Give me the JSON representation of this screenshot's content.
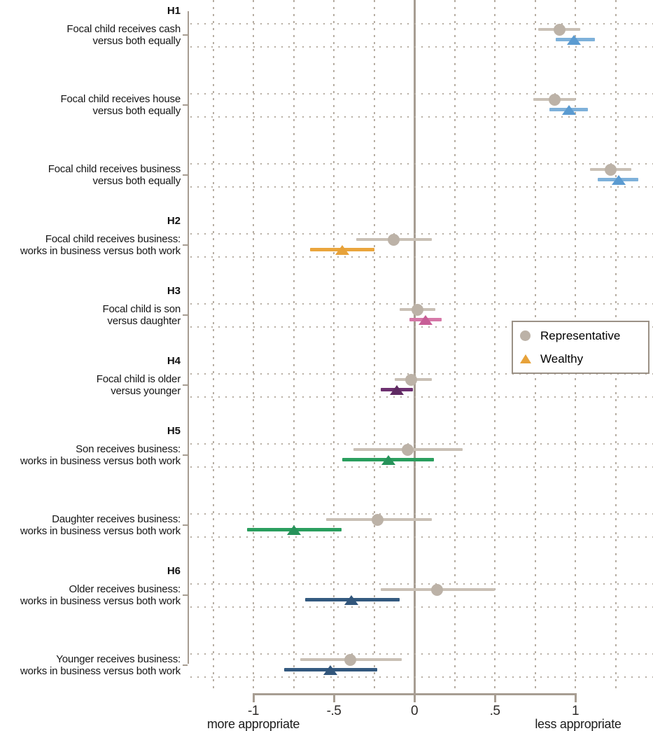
{
  "chart_data": {
    "type": "scatter",
    "variant": "coefficient-forest-plot",
    "title": "",
    "x_axis": {
      "ticks": [
        -1,
        -0.5,
        0,
        0.5,
        1
      ],
      "tick_labels": [
        "-1",
        "-.5",
        "0",
        ".5",
        "1"
      ],
      "label_left": "more appropriate",
      "label_right": "less appropriate",
      "gridline_step": 0.25,
      "gridline_range": [
        -1.25,
        1.25
      ],
      "zero_reference_line": true
    },
    "legend": {
      "items": [
        {
          "label": "Representative",
          "marker": "circle",
          "color": "#bcb2a7"
        },
        {
          "label": "Wealthy",
          "marker": "triangle",
          "color": "#e7a23a"
        }
      ]
    },
    "representative_color": "#bcb2a7",
    "representative_ci_color": "#c9c0b5",
    "groups": [
      {
        "header": "H1",
        "coefficients": [
          {
            "label_lines": [
              "Focal child receives cash",
              "versus both equally"
            ],
            "representative": {
              "est": 0.9,
              "ci": [
                0.77,
                1.03
              ]
            },
            "wealthy": {
              "est": 0.99,
              "ci": [
                0.88,
                1.12
              ],
              "color": "#5b9bd1",
              "ci_color": "#7eb1da"
            }
          },
          {
            "label_lines": [
              "Focal child receives house",
              "versus both equally"
            ],
            "representative": {
              "est": 0.87,
              "ci": [
                0.74,
                1.0
              ]
            },
            "wealthy": {
              "est": 0.96,
              "ci": [
                0.84,
                1.08
              ],
              "color": "#5b9bd1",
              "ci_color": "#7eb1da"
            }
          },
          {
            "label_lines": [
              "Focal child receives business",
              "versus both equally"
            ],
            "representative": {
              "est": 1.22,
              "ci": [
                1.09,
                1.35
              ]
            },
            "wealthy": {
              "est": 1.27,
              "ci": [
                1.14,
                1.39
              ],
              "color": "#5b9bd1",
              "ci_color": "#7eb1da"
            }
          }
        ]
      },
      {
        "header": "H2",
        "coefficients": [
          {
            "label_lines": [
              "Focal child receives business:",
              "works in business versus both work"
            ],
            "representative": {
              "est": -0.13,
              "ci": [
                -0.36,
                0.11
              ]
            },
            "wealthy": {
              "est": -0.45,
              "ci": [
                -0.65,
                -0.25
              ],
              "color": "#e7a23a",
              "ci_color": "#eaa53c"
            }
          }
        ]
      },
      {
        "header": "H3",
        "coefficients": [
          {
            "label_lines": [
              "Focal child is son",
              "versus daughter"
            ],
            "representative": {
              "est": 0.02,
              "ci": [
                -0.09,
                0.13
              ]
            },
            "wealthy": {
              "est": 0.07,
              "ci": [
                -0.03,
                0.17
              ],
              "color": "#c75e96",
              "ci_color": "#d678a8"
            }
          }
        ]
      },
      {
        "header": "H4",
        "coefficients": [
          {
            "label_lines": [
              "Focal child is older",
              "versus younger"
            ],
            "representative": {
              "est": -0.02,
              "ci": [
                -0.12,
                0.11
              ]
            },
            "wealthy": {
              "est": -0.11,
              "ci": [
                -0.21,
                -0.01
              ],
              "color": "#5f2a62",
              "ci_color": "#6d3170"
            }
          }
        ]
      },
      {
        "header": "H5",
        "coefficients": [
          {
            "label_lines": [
              "Son receives business:",
              "works in business versus both work"
            ],
            "representative": {
              "est": -0.04,
              "ci": [
                -0.38,
                0.3
              ]
            },
            "wealthy": {
              "est": -0.16,
              "ci": [
                -0.45,
                0.12
              ],
              "color": "#27935a",
              "ci_color": "#2a9e5e"
            }
          },
          {
            "label_lines": [
              "Daughter receives business:",
              "works in business versus both work"
            ],
            "representative": {
              "est": -0.23,
              "ci": [
                -0.55,
                0.11
              ]
            },
            "wealthy": {
              "est": -0.75,
              "ci": [
                -1.04,
                -0.45
              ],
              "color": "#27935a",
              "ci_color": "#2a9e5e"
            }
          }
        ]
      },
      {
        "header": "H6",
        "coefficients": [
          {
            "label_lines": [
              "Older receives business:",
              "works in business versus both work"
            ],
            "representative": {
              "est": 0.14,
              "ci": [
                -0.21,
                0.5
              ]
            },
            "wealthy": {
              "est": -0.39,
              "ci": [
                -0.68,
                -0.09
              ],
              "color": "#32567b",
              "ci_color": "#33597f"
            }
          },
          {
            "label_lines": [
              "Younger receives business:",
              "works in business versus both work"
            ],
            "representative": {
              "est": -0.4,
              "ci": [
                -0.71,
                -0.08
              ]
            },
            "wealthy": {
              "est": -0.52,
              "ci": [
                -0.81,
                -0.23
              ],
              "color": "#32567b",
              "ci_color": "#33597f"
            }
          }
        ]
      }
    ]
  }
}
